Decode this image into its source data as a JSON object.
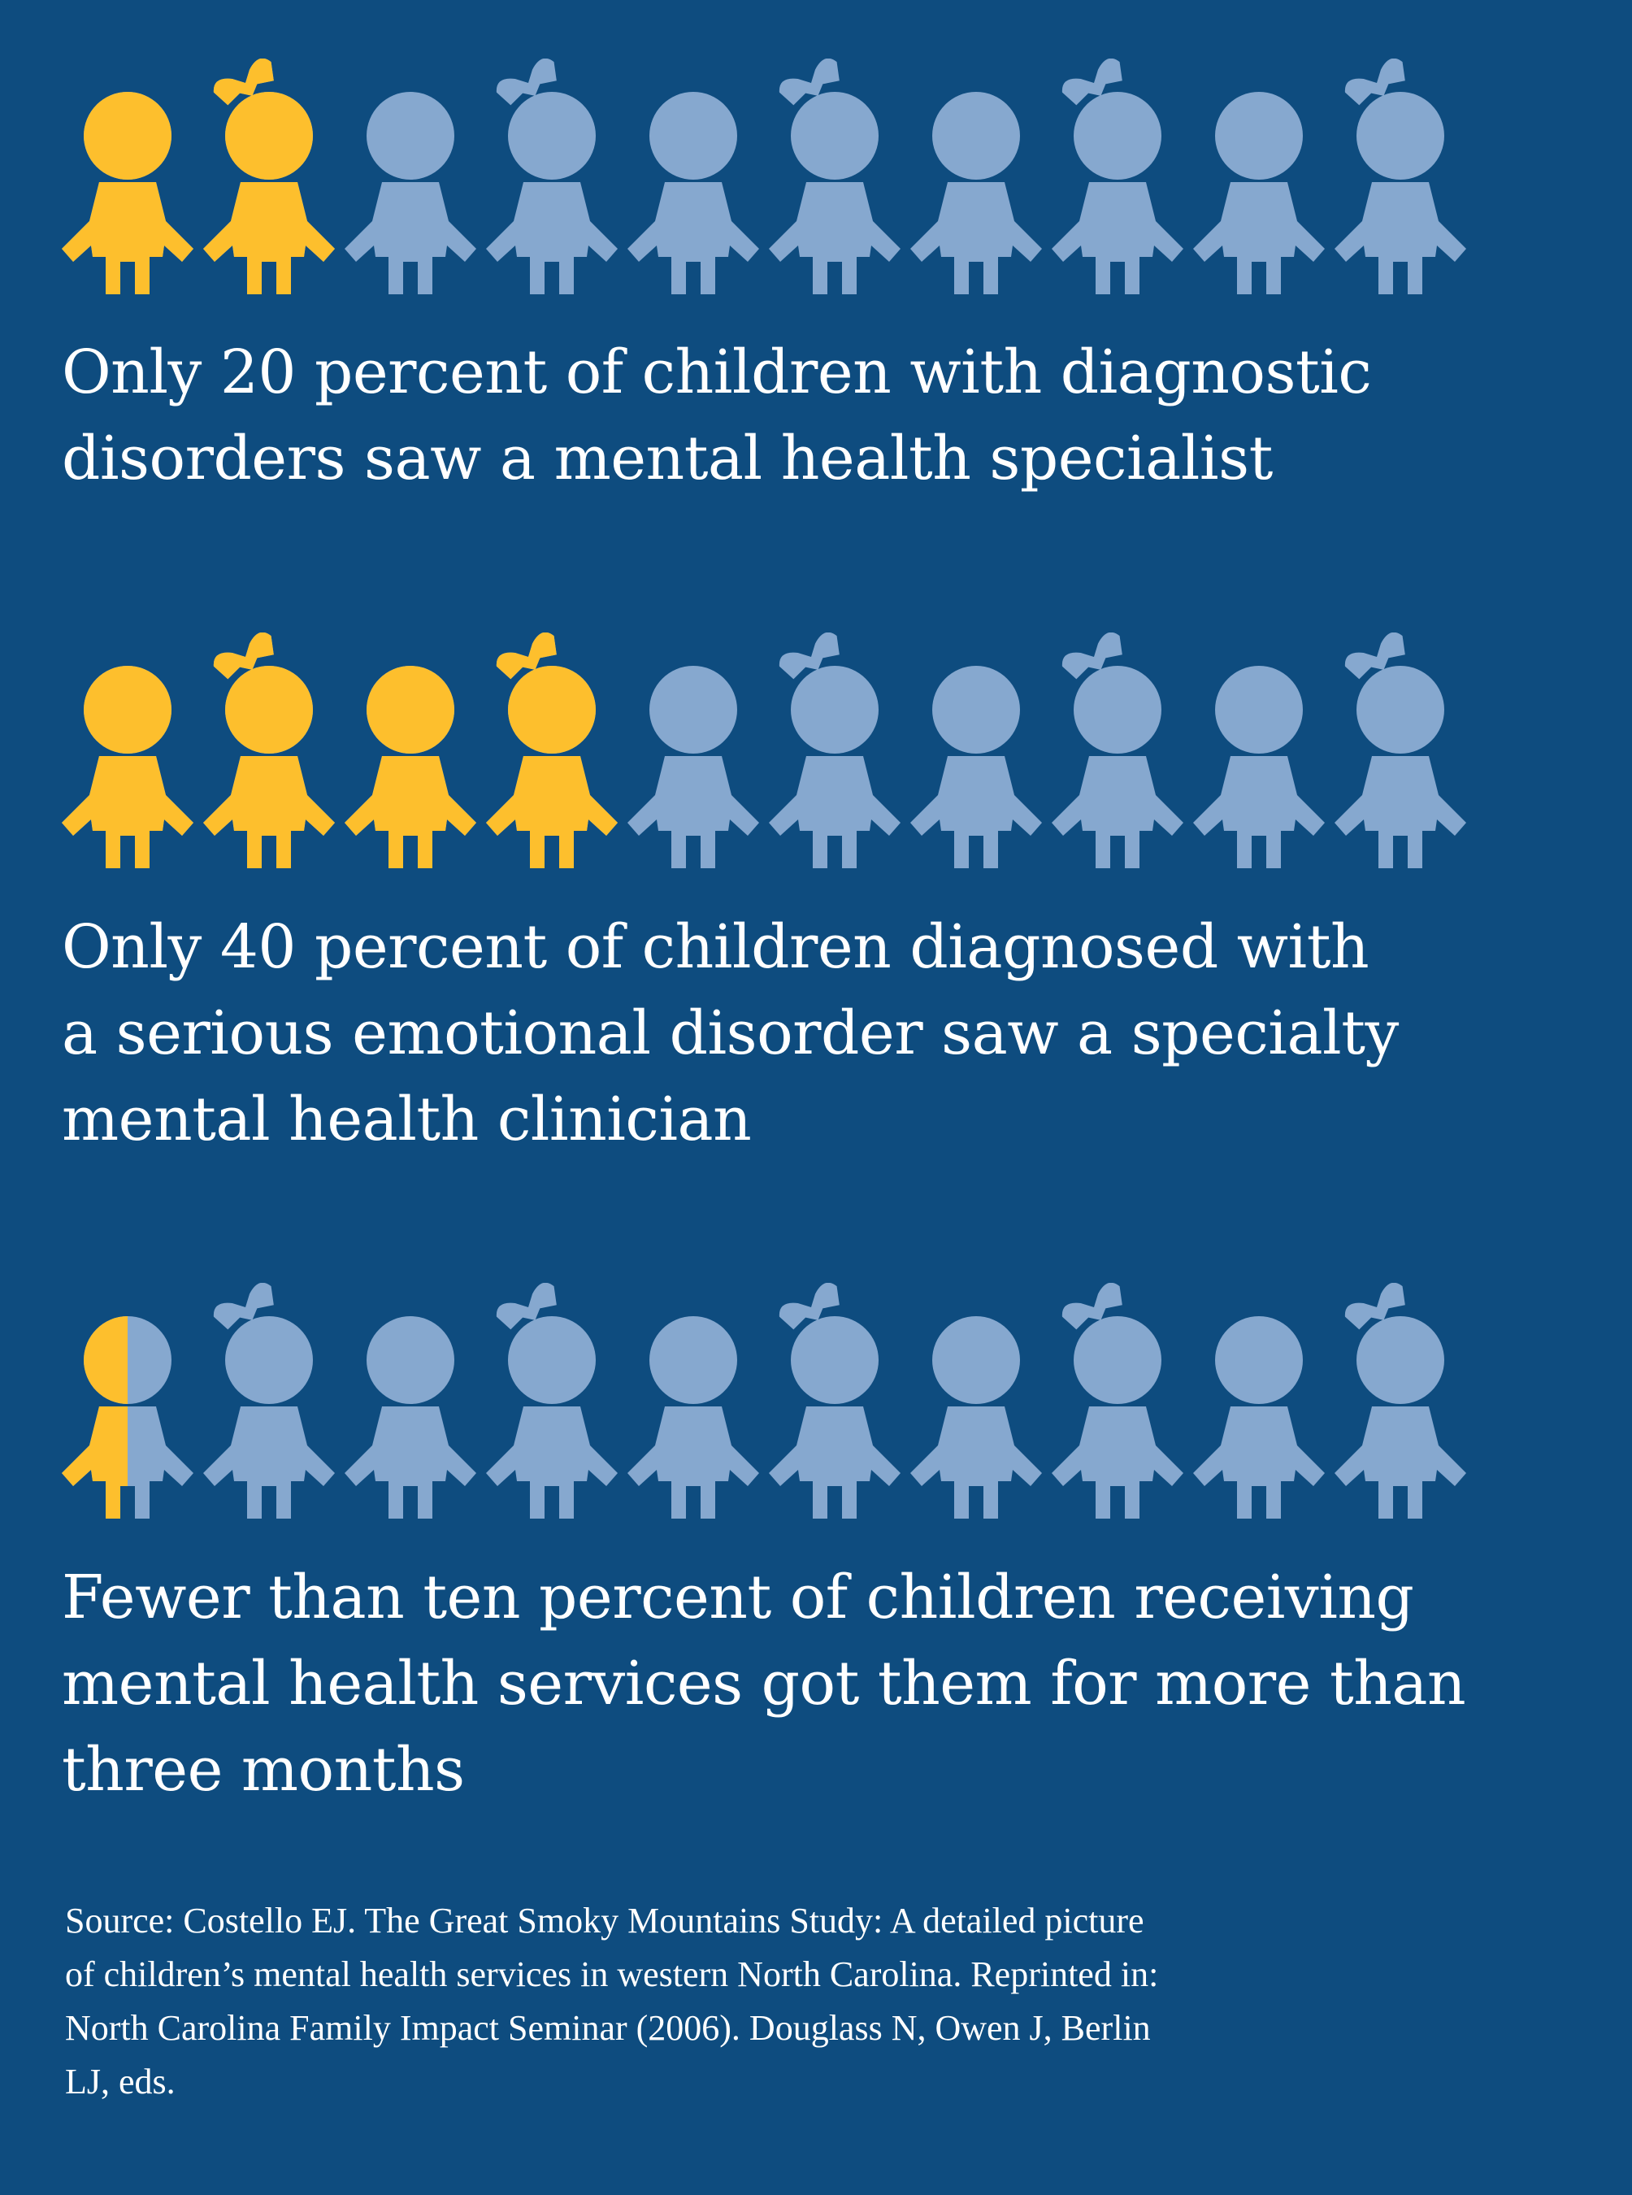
{
  "colors": {
    "background": "#0e4c7f",
    "highlight": "#fdbf2d",
    "muted": "#86a8cf",
    "text": "#ffffff"
  },
  "rows": [
    {
      "fill_fraction": 0.2,
      "figures": [
        "boy",
        "girl",
        "boy",
        "girl",
        "boy",
        "girl",
        "boy",
        "girl",
        "boy",
        "girl"
      ],
      "caption_lines": [
        "Only 20 percent of children with diagnostic",
        "disorders saw a mental health specialist"
      ]
    },
    {
      "fill_fraction": 0.4,
      "figures": [
        "boy",
        "girl",
        "boy",
        "girl",
        "boy",
        "girl",
        "boy",
        "girl",
        "boy",
        "girl"
      ],
      "caption_lines": [
        "Only 40 percent of children diagnosed with",
        "a serious emotional disorder saw a specialty",
        "mental health clinician"
      ]
    },
    {
      "fill_fraction": 0.05,
      "figures": [
        "boy",
        "girl",
        "boy",
        "girl",
        "boy",
        "girl",
        "boy",
        "girl",
        "boy",
        "girl"
      ],
      "caption_lines": [
        "Fewer than ten percent of children receiving",
        "mental health services got them for more than",
        "three months"
      ]
    }
  ],
  "source_lines": [
    "Source: Costello EJ. The Great Smoky Mountains Study: A detailed picture",
    "of children’s mental health services in western North Carolina. Reprinted in:",
    "North Carolina Family Impact Seminar (2006). Douglass N, Owen J, Berlin",
    "LJ, eds."
  ],
  "icon_names": {
    "boy": "boy-figure-icon",
    "girl": "girl-figure-icon"
  }
}
